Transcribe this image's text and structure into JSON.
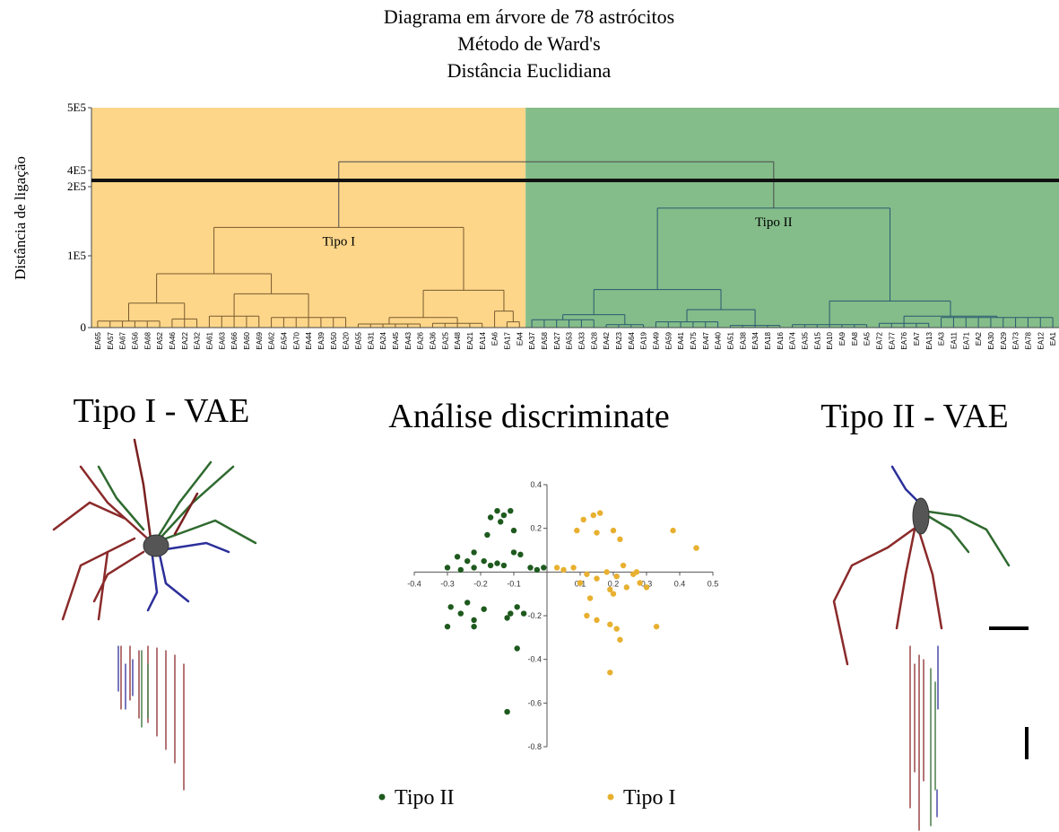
{
  "chart_data": [
    {
      "type": "dendrogram",
      "title": "Diagrama em árvore de 78 astrócitos",
      "subtitle": [
        "Método de Ward's",
        "Distância Euclidiana"
      ],
      "ylabel": "Distância de ligação",
      "ylim": [
        0,
        500000
      ],
      "yticks": [
        {
          "value": 0,
          "label": "0"
        },
        {
          "value": 100000,
          "label": "1E5"
        },
        {
          "value": 200000,
          "label": "2E5"
        },
        {
          "value": 400000,
          "label": "4E5"
        },
        {
          "value": 500000,
          "label": "5E5"
        }
      ],
      "categories": [
        "EA65",
        "EA57",
        "EA67",
        "EA56",
        "EA68",
        "EA52",
        "EA46",
        "EA22",
        "EA32",
        "EA61",
        "EA63",
        "EA66",
        "EA60",
        "EA69",
        "EA62",
        "EA54",
        "EA70",
        "EA44",
        "EA39",
        "EA50",
        "EA20",
        "EA55",
        "EA31",
        "EA24",
        "EA45",
        "EA43",
        "EA26",
        "EA36",
        "EA25",
        "EA48",
        "EA21",
        "EA14",
        "EA6",
        "EA17",
        "EA4",
        "EA37",
        "EA58",
        "EA27",
        "EA53",
        "EA33",
        "EA28",
        "EA42",
        "EA23",
        "EA64",
        "EA19",
        "EA49",
        "EA59",
        "EA41",
        "EA75",
        "EA47",
        "EA40",
        "EA51",
        "EA38",
        "EA34",
        "EA18",
        "EA16",
        "EA74",
        "EA35",
        "EA15",
        "EA10",
        "EA9",
        "EA8",
        "EA5",
        "EA72",
        "EA77",
        "EA76",
        "EA7",
        "EA13",
        "EA3",
        "EA11",
        "EA71",
        "EA2",
        "EA30",
        "EA29",
        "EA73",
        "EA78",
        "EA12",
        "EA1"
      ],
      "tree": {
        "height": 414000,
        "color": "#4a4a4a",
        "children": [
          {
            "label": "Tipo I",
            "color": "#7a5a2e",
            "background": "#fdd68a",
            "height": 141000,
            "children": [
              {
                "height": 75000,
                "children": [
                  {
                    "height": 34000,
                    "children": [
                      {
                        "height": 9000,
                        "children": [
                          0,
                          1,
                          2,
                          3,
                          4,
                          5
                        ]
                      },
                      {
                        "height": 12000,
                        "children": [
                          6,
                          7,
                          8
                        ]
                      }
                    ]
                  },
                  {
                    "height": 47000,
                    "children": [
                      {
                        "height": 16000,
                        "children": [
                          9,
                          10,
                          11,
                          12,
                          13
                        ]
                      },
                      {
                        "height": 14000,
                        "children": [
                          14,
                          15,
                          16,
                          17,
                          18,
                          19,
                          20
                        ]
                      }
                    ]
                  }
                ]
              },
              {
                "height": 52000,
                "children": [
                  {
                    "height": 14000,
                    "children": [
                      {
                        "height": 5000,
                        "children": [
                          21,
                          22,
                          23,
                          24,
                          25,
                          26
                        ]
                      },
                      {
                        "height": 6000,
                        "children": [
                          27,
                          28,
                          29,
                          30,
                          31
                        ]
                      }
                    ]
                  },
                  {
                    "height": 23000,
                    "children": [
                      32,
                      {
                        "height": 8000,
                        "children": [
                          33,
                          34
                        ]
                      }
                    ]
                  }
                ]
              }
            ]
          },
          {
            "label": "Tipo II",
            "color": "#2a5870",
            "background": "#84bd8a",
            "height": 169000,
            "children": [
              {
                "height": 53000,
                "children": [
                  {
                    "height": 18000,
                    "children": [
                      {
                        "height": 11000,
                        "children": [
                          35,
                          36,
                          37,
                          38,
                          39,
                          40
                        ]
                      },
                      {
                        "height": 4000,
                        "children": [
                          41,
                          42,
                          43,
                          44
                        ]
                      }
                    ]
                  },
                  {
                    "height": 25000,
                    "children": [
                      {
                        "height": 8000,
                        "children": [
                          45,
                          46,
                          47,
                          48,
                          49,
                          50
                        ]
                      },
                      {
                        "height": 3000,
                        "children": [
                          51,
                          52,
                          53,
                          54,
                          55
                        ]
                      }
                    ]
                  }
                ]
              },
              {
                "height": 37000,
                "children": [
                  {
                    "height": 4000,
                    "children": [
                      56,
                      57,
                      58,
                      59,
                      60,
                      61,
                      62
                    ]
                  },
                  {
                    "height": 16000,
                    "children": [
                      {
                        "height": 6000,
                        "children": [
                          63,
                          64,
                          65,
                          66,
                          67
                        ]
                      },
                      {
                        "height": 14000,
                        "children": [
                          68,
                          69,
                          70,
                          71,
                          72,
                          73,
                          74,
                          75,
                          76,
                          77
                        ]
                      }
                    ]
                  }
                ]
              }
            ]
          }
        ]
      }
    },
    {
      "type": "scatter",
      "title": "Análise discriminate",
      "xlim": [
        -0.4,
        0.5
      ],
      "ylim": [
        -0.8,
        0.4
      ],
      "xticks": [
        -0.4,
        -0.3,
        -0.2,
        -0.1,
        0.1,
        0.2,
        0.3,
        0.4,
        0.5
      ],
      "yticks": [
        0.4,
        0.2,
        -0.2,
        -0.4,
        -0.6,
        -0.8
      ],
      "series": [
        {
          "name": "Tipo II",
          "color": "#1e5a1e",
          "x": [
            -0.15,
            -0.13,
            -0.11,
            -0.17,
            -0.14,
            -0.1,
            -0.18,
            -0.27,
            -0.24,
            -0.22,
            -0.19,
            -0.17,
            -0.15,
            -0.13,
            -0.1,
            -0.08,
            -0.3,
            -0.26,
            -0.22,
            -0.05,
            -0.03,
            -0.01,
            -0.29,
            -0.26,
            -0.24,
            -0.22,
            -0.19,
            -0.3,
            -0.11,
            -0.09,
            -0.07,
            -0.12,
            -0.09,
            -0.12,
            -0.22
          ],
          "values": [
            0.28,
            0.26,
            0.28,
            0.25,
            0.23,
            0.19,
            0.17,
            0.07,
            0.05,
            0.09,
            0.05,
            0.03,
            0.04,
            0.03,
            0.09,
            0.08,
            0.02,
            0.01,
            0.02,
            0.02,
            0.01,
            0.02,
            -0.16,
            -0.19,
            -0.14,
            -0.22,
            -0.17,
            -0.25,
            -0.19,
            -0.16,
            -0.19,
            -0.21,
            -0.35,
            -0.64,
            -0.25
          ]
        },
        {
          "name": "Tipo I",
          "color": "#e8b030",
          "x": [
            0.11,
            0.14,
            0.16,
            0.09,
            0.15,
            0.2,
            0.22,
            0.38,
            0.45,
            0.08,
            0.03,
            0.05,
            0.12,
            0.15,
            0.18,
            0.21,
            0.23,
            0.26,
            0.28,
            0.24,
            0.19,
            0.1,
            0.13,
            0.2,
            0.27,
            0.12,
            0.15,
            0.19,
            0.21,
            0.22,
            0.33,
            0.19,
            0.3
          ],
          "values": [
            0.24,
            0.26,
            0.27,
            0.19,
            0.18,
            0.19,
            0.15,
            0.19,
            0.11,
            0.02,
            0.02,
            0.01,
            -0.01,
            -0.03,
            0,
            -0.02,
            0.03,
            -0.01,
            -0.05,
            -0.07,
            -0.08,
            -0.05,
            -0.12,
            -0.1,
            0,
            -0.2,
            -0.22,
            -0.24,
            -0.26,
            -0.31,
            -0.25,
            -0.46,
            -0.07
          ]
        }
      ]
    }
  ],
  "panels": {
    "left_title": "Tipo I - VAE",
    "right_title": "Tipo II - VAE"
  }
}
